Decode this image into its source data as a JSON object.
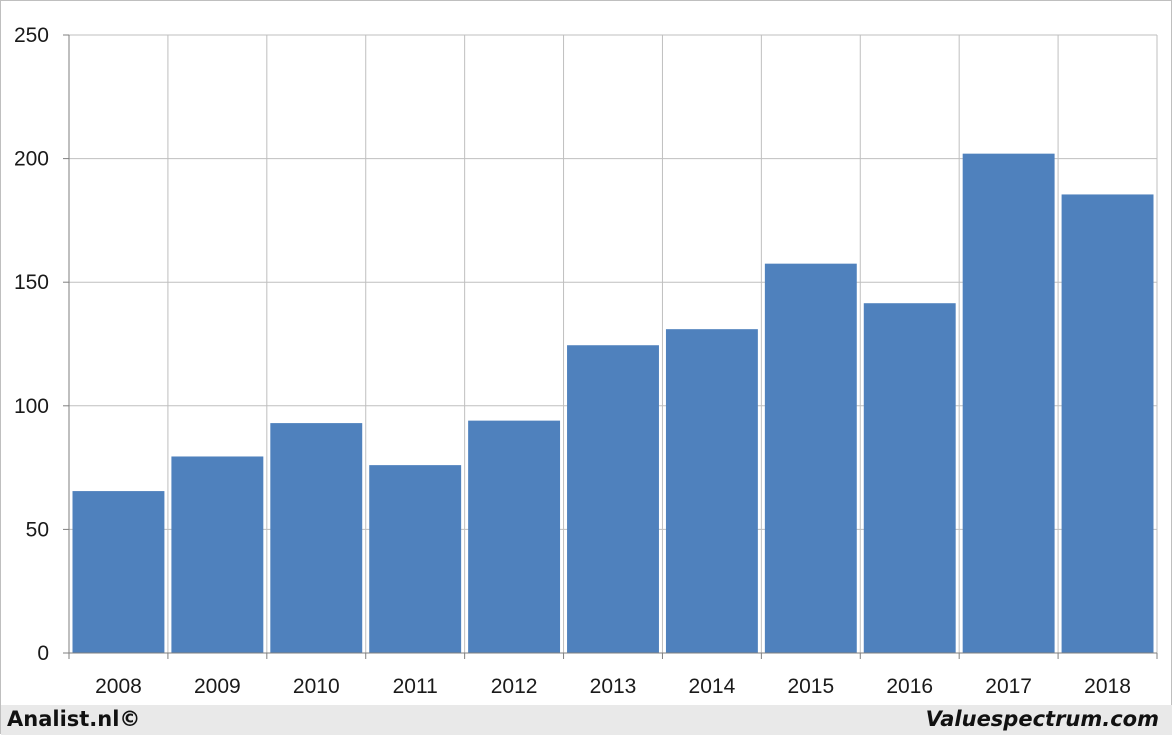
{
  "chart_data": {
    "type": "bar",
    "categories": [
      "2008",
      "2009",
      "2010",
      "2011",
      "2012",
      "2013",
      "2014",
      "2015",
      "2016",
      "2017",
      "2018"
    ],
    "values": [
      65.5,
      79.5,
      93,
      76,
      94,
      124.5,
      131,
      157.5,
      141.5,
      202,
      185.5
    ],
    "title": "",
    "xlabel": "",
    "ylabel": "",
    "ylim": [
      0,
      250
    ],
    "yticks": [
      0,
      50,
      100,
      150,
      200,
      250
    ],
    "grid": true,
    "legend": "none",
    "bar_color": "#4f81bd",
    "grid_color": "#bfbfbf"
  },
  "footer": {
    "left": "Analist.nl©",
    "right": "Valuespectrum.com"
  }
}
